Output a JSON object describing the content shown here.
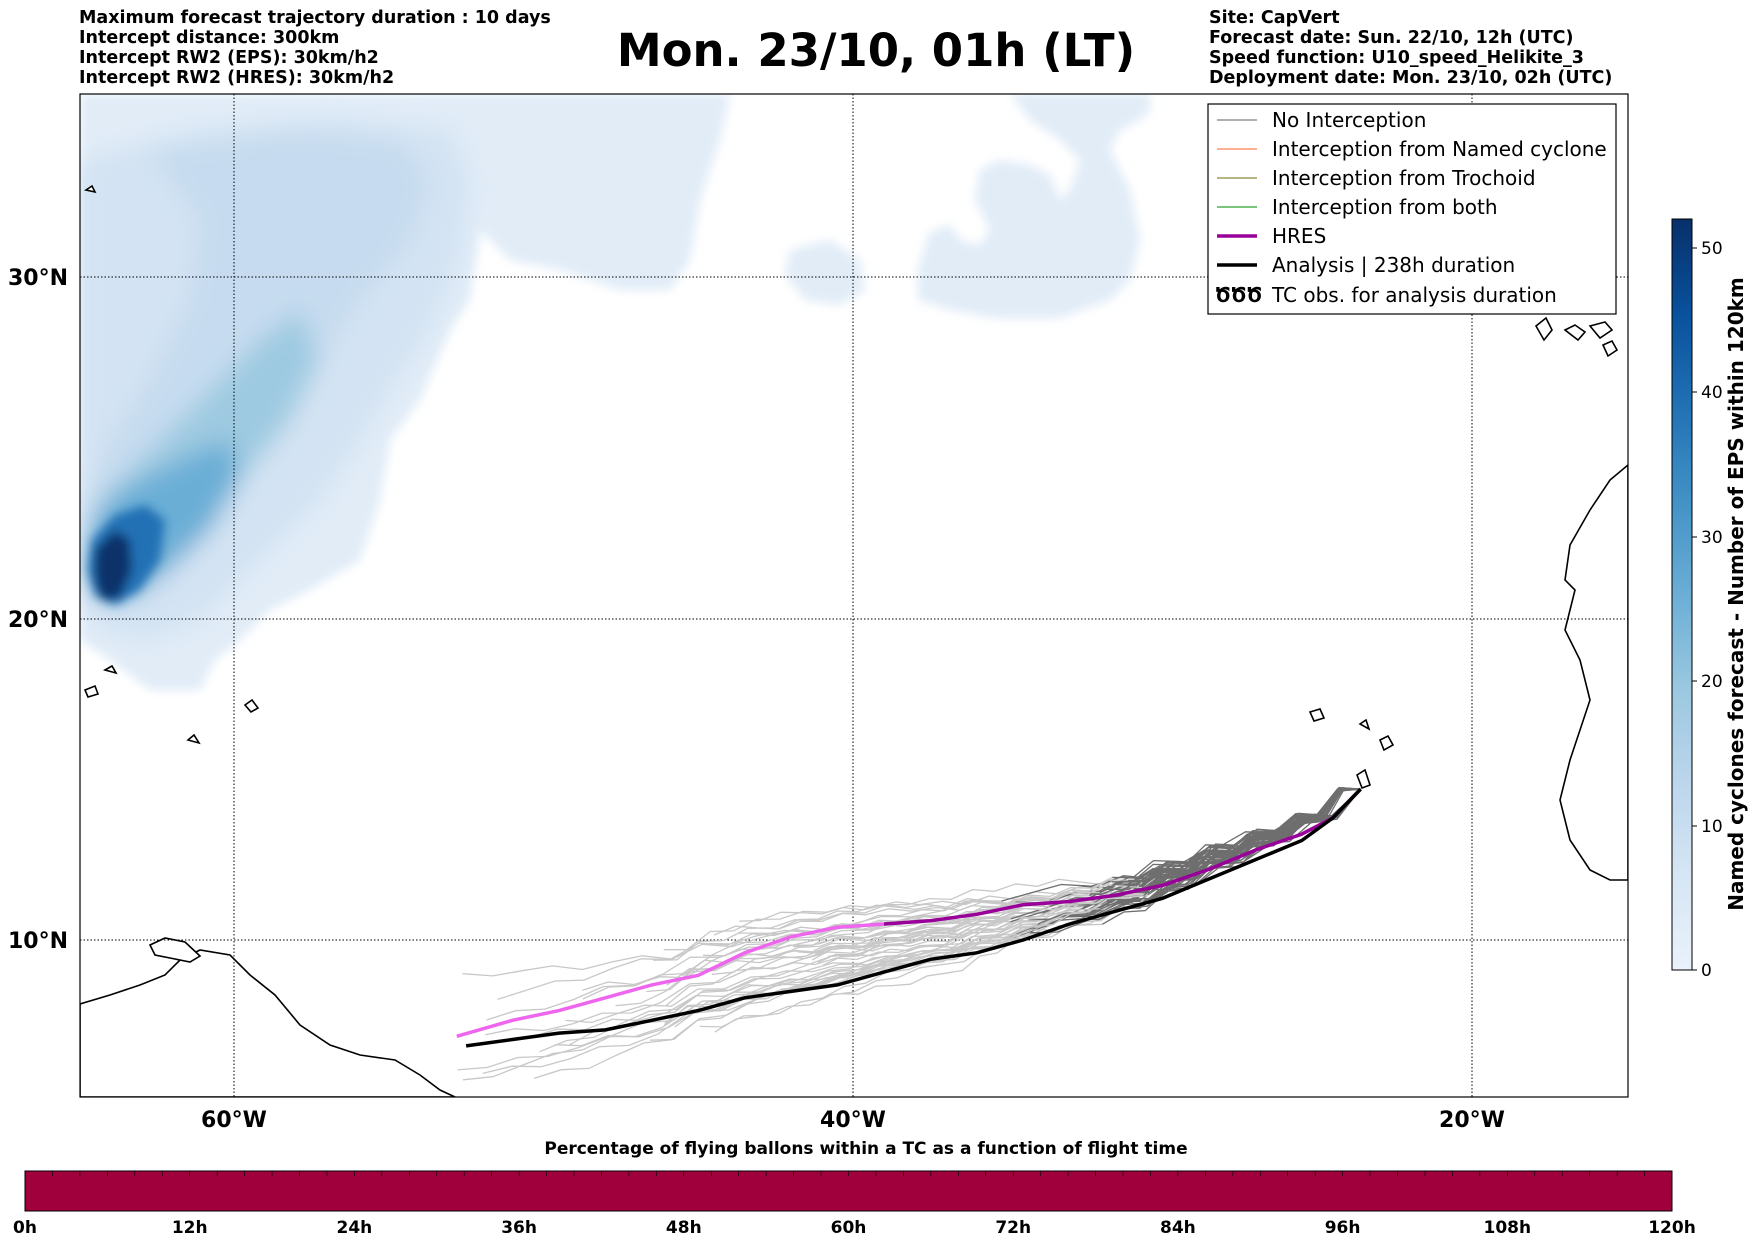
{
  "header": {
    "left_lines": [
      "Maximum forecast trajectory duration : 10 days",
      "Intercept distance: 300km",
      "Intercept RW2 (EPS):  30km/h2",
      "Intercept RW2 (HRES): 30km/h2"
    ],
    "title": "Mon. 23/10, 01h (LT)",
    "right_lines": [
      "Site: CapVert",
      "Forecast date: Sun. 22/10, 12h (UTC)",
      "Speed function: U10_speed_Helikite_3",
      "Deployment date: Mon. 23/10, 02h (UTC)"
    ]
  },
  "map": {
    "extent": {
      "lon_min": -65,
      "lon_max": -15,
      "lat_min": 5,
      "lat_max": 35
    },
    "lon_ticks": [
      {
        "value": -60,
        "label": "60°W"
      },
      {
        "value": -40,
        "label": "40°W"
      },
      {
        "value": -20,
        "label": "20°W"
      }
    ],
    "lat_ticks": [
      {
        "value": 10,
        "label": "10°N"
      },
      {
        "value": 20,
        "label": "20°N"
      },
      {
        "value": 30,
        "label": "30°N"
      }
    ],
    "deployment_site": {
      "lon": -23.6,
      "lat": 14.7
    }
  },
  "legend": [
    {
      "label": "No Interception",
      "color": "#808080",
      "style": "thin"
    },
    {
      "label": "Interception from Named cyclone",
      "color": "#ff7f50",
      "style": "thin"
    },
    {
      "label": "Interception from Trochoid",
      "color": "#8b8b3a",
      "style": "thin"
    },
    {
      "label": "Interception from both",
      "color": "#2ca02c",
      "style": "thin"
    },
    {
      "label": "HRES",
      "color": "#990099",
      "style": "thick"
    },
    {
      "label": "Analysis | 238h duration",
      "color": "#000000",
      "style": "thick"
    },
    {
      "label": "TC obs. for analysis duration",
      "color": "#000000",
      "style": "symbol",
      "symbol": "ԾԾԾ"
    }
  ],
  "colorbar": {
    "label": "Named cyclones forecast - Number of EPS within 120km",
    "min": 0,
    "max": 52,
    "ticks": [
      "0",
      "10",
      "20",
      "30",
      "40",
      "50"
    ],
    "colors": [
      "#eaf2fb",
      "#d6e6f4",
      "#bcd6ec",
      "#9ac8e0",
      "#6baed6",
      "#4292c6",
      "#2171b5",
      "#08519c",
      "#08306b"
    ]
  },
  "chart_data": {
    "type": "line",
    "analysis_track": {
      "name": "Analysis | 238h duration",
      "lon": [
        -23.6,
        -24.5,
        -25.5,
        -27,
        -28.5,
        -30,
        -31.5,
        -33,
        -34.5,
        -36,
        -37.5,
        -39,
        -40.5,
        -42,
        -43.5,
        -45,
        -46.5,
        -48,
        -49.5,
        -51,
        -52.5
      ],
      "lat": [
        14.7,
        13.8,
        13.1,
        12.5,
        11.9,
        11.3,
        10.9,
        10.5,
        10.0,
        9.6,
        9.4,
        9.0,
        8.6,
        8.4,
        8.2,
        7.8,
        7.5,
        7.2,
        7.1,
        6.9,
        6.7
      ]
    },
    "hres_track": {
      "name": "HRES",
      "lon": [
        -23.6,
        -24.5,
        -25.5,
        -27,
        -28.5,
        -30,
        -31.5,
        -33,
        -34.5,
        -36,
        -37.5,
        -39,
        -40.5,
        -42,
        -43.5,
        -45,
        -46.5,
        -48,
        -49.5,
        -51,
        -52.8
      ],
      "lat": [
        14.7,
        13.8,
        13.3,
        12.8,
        12.2,
        11.7,
        11.4,
        11.2,
        11.1,
        10.8,
        10.6,
        10.5,
        10.4,
        10.1,
        9.6,
        8.9,
        8.6,
        8.2,
        7.8,
        7.5,
        7.0
      ]
    },
    "ensemble_members": 50,
    "time_bar": {
      "title": "Percentage of flying ballons within a TC as a function of flight time",
      "ticks": [
        "0h",
        "12h",
        "24h",
        "36h",
        "48h",
        "60h",
        "72h",
        "84h",
        "96h",
        "108h",
        "120h"
      ],
      "color": "#a0003c"
    }
  }
}
